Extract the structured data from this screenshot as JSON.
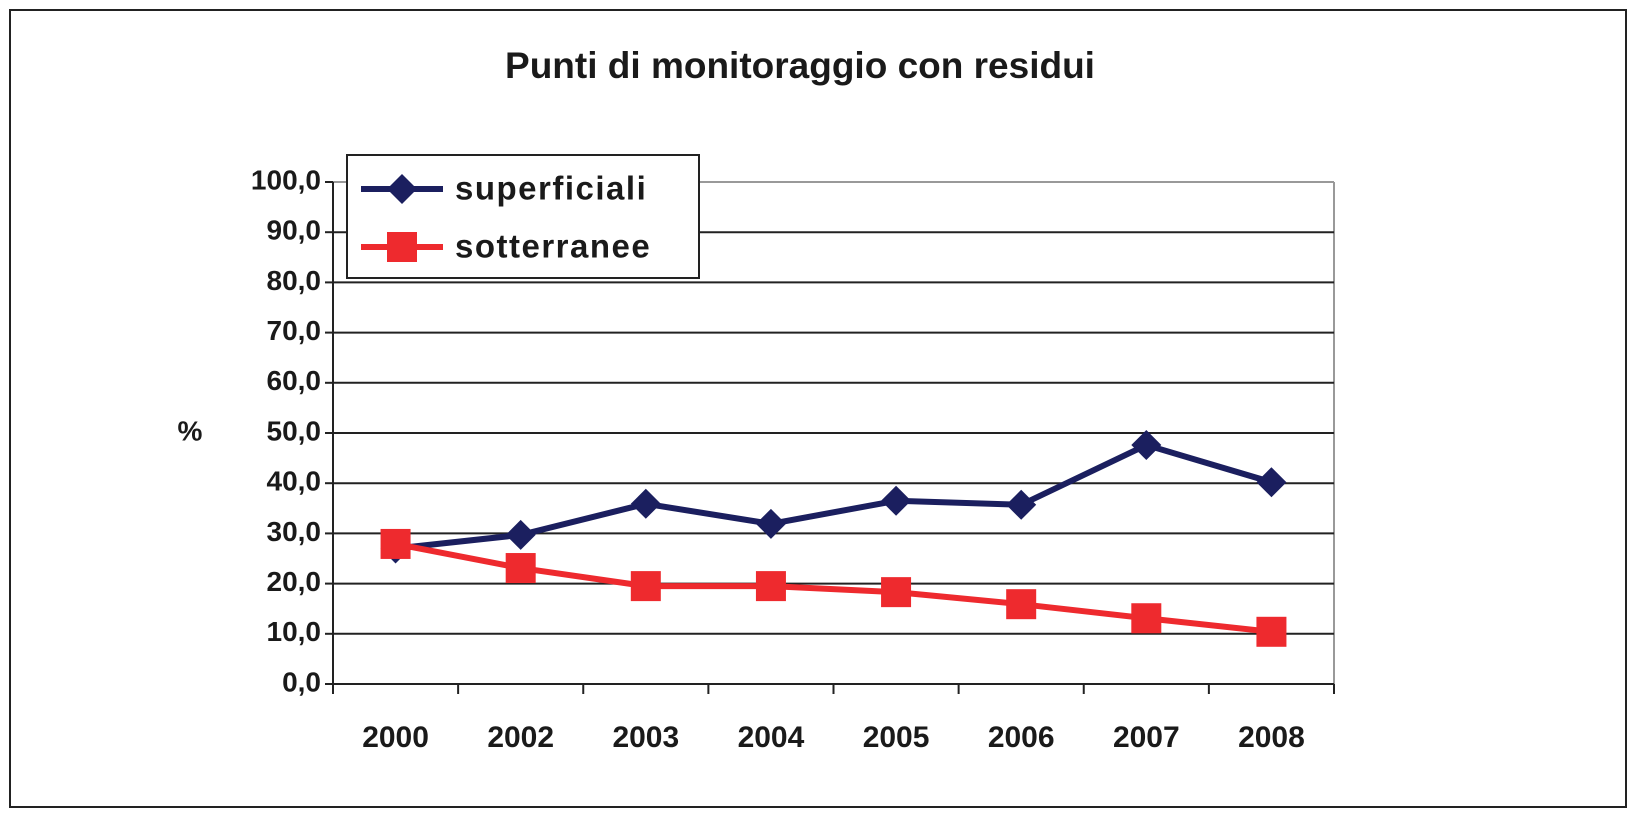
{
  "chart_data": {
    "type": "line",
    "title": "Punti di monitoraggio con residui",
    "y_label": "%",
    "categories": [
      "2000",
      "2002",
      "2003",
      "2004",
      "2005",
      "2006",
      "2007",
      "2008"
    ],
    "series": [
      {
        "name": "superficiali",
        "color": "#1b1f5f",
        "marker": "diamond",
        "values": [
          27.0,
          29.7,
          35.9,
          31.9,
          36.5,
          35.7,
          47.6,
          40.2
        ]
      },
      {
        "name": "sotterranee",
        "color": "#ee2a2e",
        "marker": "square",
        "values": [
          27.9,
          23.1,
          19.5,
          19.5,
          18.3,
          15.9,
          13.1,
          10.4
        ]
      }
    ],
    "ylim": [
      0,
      100
    ],
    "yticks": [
      {
        "value": 0,
        "label": "0,0"
      },
      {
        "value": 10,
        "label": "10,0"
      },
      {
        "value": 20,
        "label": "20,0"
      },
      {
        "value": 30,
        "label": "30,0"
      },
      {
        "value": 40,
        "label": "40,0"
      },
      {
        "value": 50,
        "label": "50,0"
      },
      {
        "value": 60,
        "label": "60,0"
      },
      {
        "value": 70,
        "label": "70,0"
      },
      {
        "value": 80,
        "label": "80,0"
      },
      {
        "value": 90,
        "label": "90,0"
      },
      {
        "value": 100,
        "label": "100,0"
      }
    ],
    "grid": true,
    "legend": "upper left"
  }
}
